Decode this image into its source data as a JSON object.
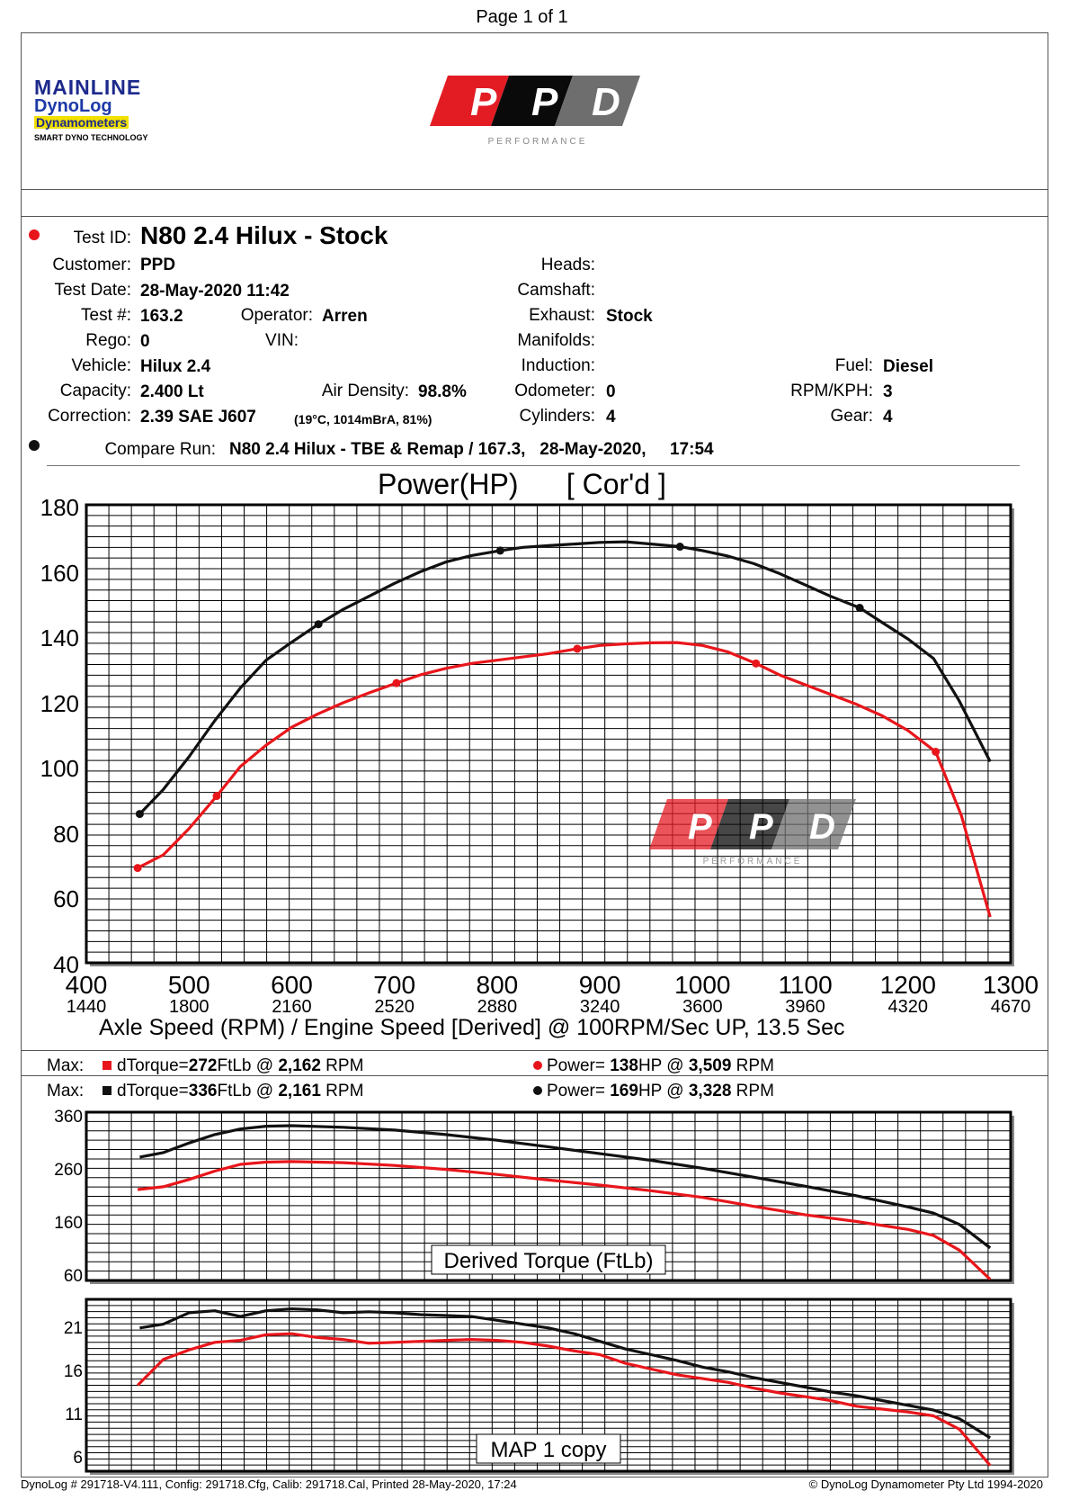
{
  "page_label": "Page 1 of 1",
  "logos": {
    "mainline": {
      "line1": "MAINLINE",
      "line2": "DynoLog",
      "line3": "Dynamometers",
      "line4": "SMART DYNO TECHNOLOGY"
    },
    "ppd": {
      "letters": [
        "P",
        "P",
        "D"
      ],
      "tagline": "PERFORMANCE"
    }
  },
  "test": {
    "test_id_label": "Test ID:",
    "test_id": "N80 2.4 Hilux - Stock",
    "customer_label": "Customer:",
    "customer": "PPD",
    "test_date_label": "Test Date:",
    "test_date": "28-May-2020 11:42",
    "test_num_label": "Test #:",
    "test_num": "163.2",
    "operator_label": "Operator:",
    "operator": "Arren",
    "rego_label": "Rego:",
    "rego": "0",
    "vin_label": "VIN:",
    "vehicle_label": "Vehicle:",
    "vehicle": "Hilux 2.4",
    "capacity_label": "Capacity:",
    "capacity": "2.400 Lt",
    "air_density_label": "Air Density:",
    "air_density": "98.8%",
    "correction_label": "Correction:",
    "correction": "2.39 SAE J607",
    "correction_note": "(19°C, 1014mBrA, 81%)",
    "heads_label": "Heads:",
    "camshaft_label": "Camshaft:",
    "exhaust_label": "Exhaust:",
    "exhaust": "Stock",
    "manifolds_label": "Manifolds:",
    "induction_label": "Induction:",
    "odometer_label": "Odometer:",
    "odometer": "0",
    "cylinders_label": "Cylinders:",
    "cylinders": "4",
    "fuel_label": "Fuel:",
    "fuel": "Diesel",
    "rpm_kph_label": "RPM/KPH:",
    "rpm_kph": "3",
    "gear_label": "Gear:",
    "gear": "4",
    "compare_label": "Compare Run:",
    "compare_run": "N80 2.4 Hilux - TBE & Remap / 167.3,   28-May-2020,     17:54"
  },
  "colors": {
    "run_red": "#e8161b",
    "run_black": "#111111",
    "grid": "#000000"
  },
  "max_rows": [
    {
      "label": "Max:",
      "color": "#e8161b",
      "torque_label": "dTorque=",
      "torque": "272",
      "torque_unit": "FtLb @",
      "torque_rpm": "2,162",
      "rpm_unit": "RPM",
      "power_label": "Power=",
      "power": "138",
      "power_unit": "HP @",
      "power_rpm": "3,509",
      "rpm_unit2": "RPM"
    },
    {
      "label": "Max:",
      "color": "#111111",
      "torque_label": "dTorque=",
      "torque": "336",
      "torque_unit": "FtLb @",
      "torque_rpm": "2,161",
      "rpm_unit": "RPM",
      "power_label": "Power=",
      "power": "169",
      "power_unit": "HP @",
      "power_rpm": "3,328",
      "rpm_unit2": "RPM"
    }
  ],
  "footer": {
    "left": "DynoLog # 291718-V4.111, Config: 291718.Cfg, Calib: 291718.Cal, Printed 28-May-2020, 17:24",
    "right": "© DynoLog Dynamometer Pty Ltd 1994-2020"
  },
  "chart_data": [
    {
      "type": "line",
      "title": "Power(HP)      [ Cor'd ]",
      "xlabel": "Axle Speed (RPM) / Engine Speed [Derived] @ 100RPM/Sec UP, 13.5 Sec",
      "xlim": [
        400,
        1300
      ],
      "ylim": [
        40,
        180
      ],
      "xticks": [
        400,
        500,
        600,
        700,
        800,
        900,
        1000,
        1100,
        1200,
        1300
      ],
      "xticks_engine": [
        "1440",
        "1800",
        "2160",
        "2520",
        "2880",
        "3240",
        "3600",
        "3960",
        "4320",
        "4670"
      ],
      "yticks": [
        40,
        60,
        80,
        100,
        120,
        140,
        160,
        180
      ],
      "grid": true,
      "series": [
        {
          "color": "#111111",
          "x": [
            452,
            475,
            500,
            525,
            550,
            575,
            600,
            626,
            650,
            675,
            700,
            725,
            750,
            775,
            803,
            825,
            850,
            875,
            900,
            925,
            950,
            978,
            1000,
            1025,
            1050,
            1075,
            1100,
            1125,
            1153,
            1175,
            1200,
            1225,
            1250,
            1280
          ],
          "y": [
            85.5,
            93,
            103,
            114,
            124,
            132.5,
            138,
            143.5,
            148,
            152,
            156,
            159.5,
            162.5,
            164.5,
            166,
            167,
            167.5,
            168,
            168.5,
            168.7,
            168,
            167.2,
            166,
            164.3,
            162,
            159,
            155.5,
            152,
            148.5,
            144,
            139,
            133,
            120,
            101.5
          ],
          "markers_x": [
            452,
            626,
            803,
            978,
            1153
          ]
        },
        {
          "color": "#e8161b",
          "x": [
            450,
            475,
            500,
            527,
            550,
            575,
            600,
            625,
            650,
            675,
            702,
            725,
            750,
            775,
            800,
            825,
            850,
            878,
            900,
            925,
            950,
            975,
            1000,
            1025,
            1052,
            1075,
            1100,
            1125,
            1150,
            1175,
            1200,
            1227,
            1252,
            1280
          ],
          "y": [
            69,
            73,
            81,
            91,
            100,
            106.5,
            112,
            116,
            119.5,
            122.5,
            125.5,
            128,
            130,
            131.5,
            132.5,
            133.5,
            134.5,
            136,
            137,
            137.5,
            137.8,
            137.9,
            137,
            135,
            131.5,
            128,
            125,
            122,
            119,
            115.5,
            111,
            104.5,
            85,
            54
          ],
          "markers_x": [
            450,
            527,
            702,
            878,
            1052,
            1227
          ]
        }
      ]
    },
    {
      "type": "line",
      "title": "Derived Torque (FtLb)",
      "xlim": [
        400,
        1300
      ],
      "ylim": [
        60,
        360
      ],
      "yticks": [
        60,
        160,
        260,
        360
      ],
      "grid": true,
      "series": [
        {
          "color": "#111111",
          "x": [
            452,
            475,
            500,
            525,
            550,
            575,
            600,
            650,
            700,
            750,
            800,
            850,
            900,
            950,
            1000,
            1050,
            1100,
            1150,
            1200,
            1225,
            1250,
            1280
          ],
          "y": [
            280,
            288,
            305,
            320,
            330,
            335,
            336,
            333,
            328,
            320,
            310,
            298,
            286,
            274,
            260,
            244,
            228,
            211,
            191,
            180,
            160,
            118
          ]
        },
        {
          "color": "#e8161b",
          "x": [
            450,
            475,
            500,
            525,
            550,
            575,
            600,
            650,
            700,
            750,
            800,
            850,
            900,
            950,
            1000,
            1050,
            1100,
            1150,
            1200,
            1225,
            1250,
            1280
          ],
          "y": [
            222,
            227,
            240,
            255,
            267,
            271,
            272,
            270,
            265,
            258,
            249,
            239,
            230,
            220,
            208,
            192,
            177,
            165,
            151,
            140,
            114,
            62
          ]
        }
      ]
    },
    {
      "type": "line",
      "title": "MAP 1 copy",
      "xlim": [
        400,
        1300
      ],
      "ylim": [
        6.0,
        24.0
      ],
      "yticks": [
        6.0,
        11.0,
        16.0,
        21.0
      ],
      "grid": true,
      "series": [
        {
          "color": "#111111",
          "x": [
            452,
            475,
            500,
            525,
            550,
            575,
            600,
            625,
            650,
            675,
            700,
            725,
            750,
            775,
            800,
            825,
            850,
            875,
            900,
            925,
            950,
            975,
            1000,
            1025,
            1050,
            1075,
            1100,
            1125,
            1150,
            1175,
            1200,
            1225,
            1250,
            1280
          ],
          "y": [
            21.0,
            21.4,
            22.6,
            22.8,
            22.2,
            22.8,
            23.0,
            22.9,
            22.6,
            22.7,
            22.6,
            22.4,
            22.3,
            22.2,
            21.8,
            21.4,
            21.0,
            20.4,
            19.6,
            18.8,
            18.2,
            17.6,
            16.9,
            16.4,
            15.8,
            15.3,
            14.8,
            14.3,
            13.9,
            13.4,
            12.9,
            12.4,
            11.5,
            9.5
          ]
        },
        {
          "color": "#e8161b",
          "x": [
            450,
            475,
            500,
            525,
            550,
            575,
            600,
            625,
            650,
            675,
            700,
            725,
            750,
            775,
            800,
            825,
            850,
            875,
            900,
            925,
            950,
            975,
            1000,
            1025,
            1050,
            1075,
            1100,
            1125,
            1150,
            1175,
            1200,
            1225,
            1250,
            1280
          ],
          "y": [
            15.0,
            17.7,
            18.7,
            19.5,
            19.7,
            20.3,
            20.4,
            20.0,
            19.8,
            19.4,
            19.5,
            19.6,
            19.7,
            19.8,
            19.7,
            19.5,
            19.1,
            18.6,
            18.2,
            17.3,
            16.7,
            16.1,
            15.7,
            15.3,
            14.7,
            14.2,
            13.8,
            13.4,
            12.8,
            12.5,
            12.2,
            11.8,
            10.4,
            6.6
          ]
        }
      ]
    }
  ]
}
